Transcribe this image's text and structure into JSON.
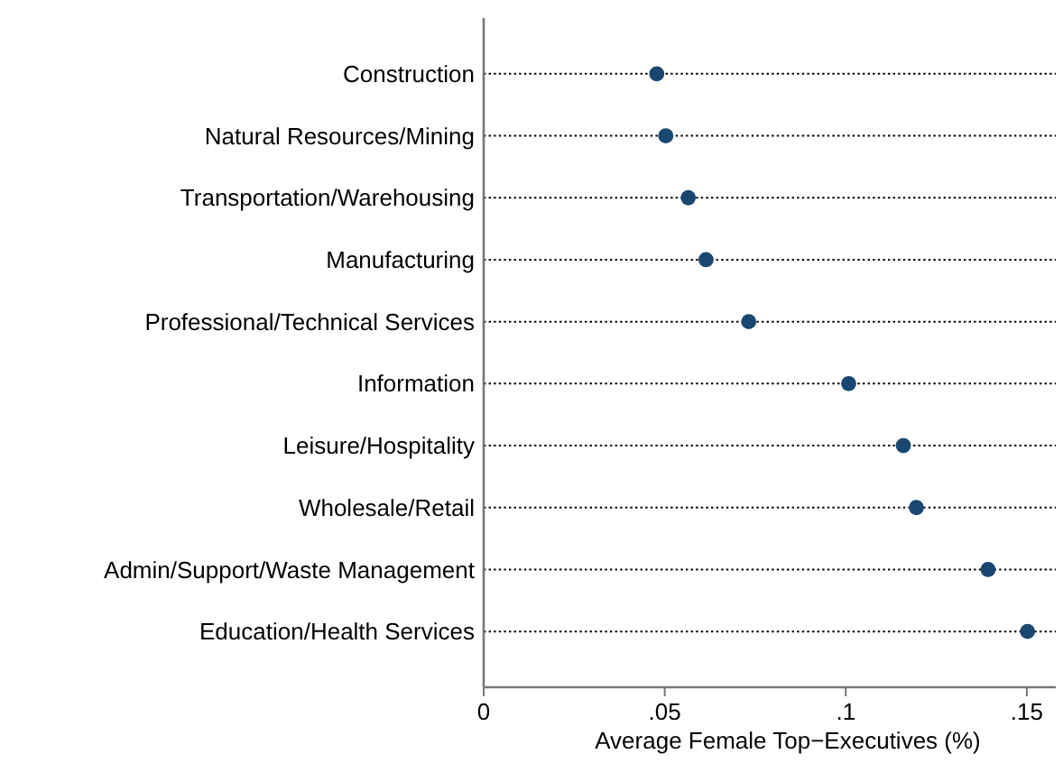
{
  "chart_data": {
    "type": "scatter",
    "orientation": "horizontal",
    "xlabel": "Average Female Top−Executives (%)",
    "categories": [
      "Construction",
      "Natural Resources/Mining",
      "Transportation/Warehousing",
      "Manufacturing",
      "Professional/Technical Services",
      "Information",
      "Leisure/Hospitality",
      "Wholesale/Retail",
      "Admin/Support/Waste Management",
      "Education/Health Services"
    ],
    "values": [
      0.0478,
      0.0503,
      0.0565,
      0.0614,
      0.0732,
      0.1008,
      0.1159,
      0.1195,
      0.1393,
      0.1502
    ],
    "color": "#1a476f",
    "marker": "circle",
    "grid": "y",
    "xlim": [
      0,
      0.158
    ],
    "xticks": [
      {
        "value": 0,
        "label": "0"
      },
      {
        "value": 0.05,
        "label": ".05"
      },
      {
        "value": 0.1,
        "label": ".1"
      },
      {
        "value": 0.15,
        "label": ".15"
      }
    ]
  }
}
